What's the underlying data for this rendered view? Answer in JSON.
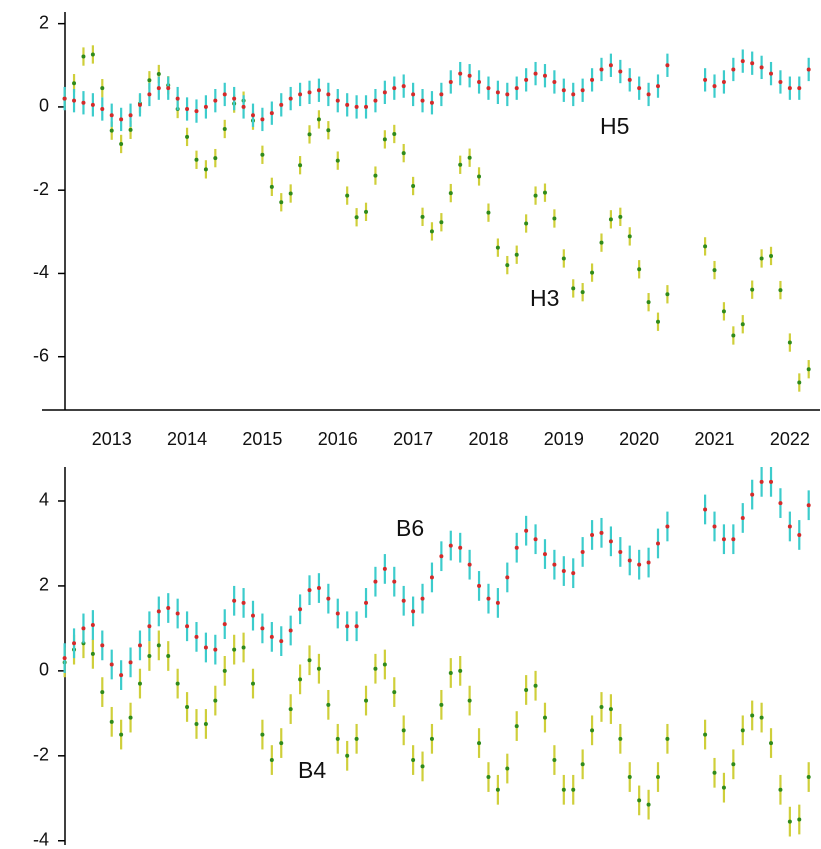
{
  "chart_data": [
    {
      "type": "errorbar",
      "x": [
        2012.375,
        2012.5,
        2012.625,
        2012.75,
        2012.875,
        2013,
        2013.125,
        2013.25,
        2013.375,
        2013.5,
        2013.625,
        2013.75,
        2013.875,
        2014,
        2014.125,
        2014.25,
        2014.375,
        2014.5,
        2014.625,
        2014.75,
        2014.875,
        2015,
        2015.125,
        2015.25,
        2015.375,
        2015.5,
        2015.625,
        2015.75,
        2015.875,
        2016,
        2016.125,
        2016.25,
        2016.375,
        2016.5,
        2016.625,
        2016.75,
        2016.875,
        2017,
        2017.125,
        2017.25,
        2017.375,
        2017.5,
        2017.625,
        2017.75,
        2017.875,
        2018,
        2018.125,
        2018.25,
        2018.375,
        2018.5,
        2018.625,
        2018.75,
        2018.875,
        2019,
        2019.125,
        2019.25,
        2019.375,
        2019.5,
        2019.625,
        2019.75,
        2019.875,
        2020,
        2020.125,
        2020.25,
        2020.375,
        2020.5,
        2020.625,
        2020.75,
        2020.875,
        2021,
        2021.125,
        2021.25,
        2021.375,
        2021.5,
        2021.625,
        2021.75,
        2021.875,
        2022,
        2022.125,
        2022.25
      ],
      "xlim": [
        2012.38,
        2022.4
      ],
      "xticks": [
        2013,
        2014,
        2015,
        2016,
        2017,
        2018,
        2019,
        2020,
        2021,
        2022
      ],
      "ylim": [
        -7.28,
        2.28
      ],
      "yticks": [
        2,
        0,
        -2,
        -4,
        -6
      ],
      "series": [
        {
          "name": "H3",
          "color": "#2f8a1c",
          "error_color": "#cfcf3a",
          "error": 0.22,
          "values": [
            0.2,
            0.57,
            1.21,
            1.26,
            0.45,
            -0.57,
            -0.89,
            -0.55,
            0.08,
            0.64,
            0.79,
            0.52,
            -0.05,
            -0.72,
            -1.27,
            -1.5,
            -1.23,
            -0.53,
            0.08,
            0.15,
            -0.33,
            -1.15,
            -1.92,
            -2.29,
            -2.08,
            -1.4,
            -0.66,
            -0.3,
            -0.56,
            -1.29,
            -2.13,
            -2.65,
            -2.52,
            -1.65,
            -0.78,
            -0.65,
            -1.11,
            -1.9,
            -2.64,
            -2.99,
            -2.77,
            -2.07,
            -1.39,
            -1.22,
            -1.67,
            -2.54,
            -3.38,
            -3.8,
            -3.55,
            -2.8,
            -2.13,
            -2.06,
            -2.68,
            -3.64,
            -4.36,
            -4.45,
            -3.98,
            -3.26,
            -2.7,
            -2.64,
            -3.11,
            -3.9,
            -4.69,
            -5.16,
            -4.5,
            null,
            null,
            null,
            -3.35,
            -3.92,
            -4.91,
            -5.49,
            -5.22,
            -4.39,
            -3.64,
            -3.58,
            -4.4,
            -5.66,
            -6.62,
            -6.3
          ]
        },
        {
          "name": "H5",
          "color": "#d42a2a",
          "error_color": "#3ccccc",
          "error": 0.28,
          "values": [
            0.2,
            0.15,
            0.1,
            0.05,
            -0.05,
            -0.2,
            -0.3,
            -0.2,
            0.05,
            0.3,
            0.45,
            0.45,
            0.2,
            -0.05,
            -0.1,
            0.0,
            0.15,
            0.3,
            0.2,
            0.0,
            -0.2,
            -0.3,
            -0.15,
            0.05,
            0.2,
            0.3,
            0.35,
            0.4,
            0.3,
            0.15,
            0.05,
            0.0,
            0.0,
            0.15,
            0.35,
            0.45,
            0.5,
            0.3,
            0.15,
            0.1,
            0.3,
            0.6,
            0.8,
            0.75,
            0.6,
            0.45,
            0.35,
            0.3,
            0.45,
            0.65,
            0.8,
            0.75,
            0.6,
            0.4,
            0.3,
            0.4,
            0.65,
            0.9,
            1.0,
            0.85,
            0.65,
            0.45,
            0.3,
            0.5,
            1.0,
            null,
            null,
            null,
            0.65,
            0.5,
            0.6,
            0.9,
            1.1,
            1.05,
            0.95,
            0.8,
            0.6,
            0.45,
            0.45,
            0.9
          ]
        }
      ]
    },
    {
      "type": "errorbar",
      "x": [
        2012.375,
        2012.5,
        2012.625,
        2012.75,
        2012.875,
        2013,
        2013.125,
        2013.25,
        2013.375,
        2013.5,
        2013.625,
        2013.75,
        2013.875,
        2014,
        2014.125,
        2014.25,
        2014.375,
        2014.5,
        2014.625,
        2014.75,
        2014.875,
        2015,
        2015.125,
        2015.25,
        2015.375,
        2015.5,
        2015.625,
        2015.75,
        2015.875,
        2016,
        2016.125,
        2016.25,
        2016.375,
        2016.5,
        2016.625,
        2016.75,
        2016.875,
        2017,
        2017.125,
        2017.25,
        2017.375,
        2017.5,
        2017.625,
        2017.75,
        2017.875,
        2018,
        2018.125,
        2018.25,
        2018.375,
        2018.5,
        2018.625,
        2018.75,
        2018.875,
        2019,
        2019.125,
        2019.25,
        2019.375,
        2019.5,
        2019.625,
        2019.75,
        2019.875,
        2020,
        2020.125,
        2020.25,
        2020.375,
        2020.5,
        2020.625,
        2020.75,
        2020.875,
        2021,
        2021.125,
        2021.25,
        2021.375,
        2021.5,
        2021.625,
        2021.75,
        2021.875,
        2022,
        2022.125,
        2022.25
      ],
      "xlim": [
        2012.38,
        2022.4
      ],
      "ylim": [
        -4.1,
        4.8
      ],
      "yticks": [
        4,
        2,
        0,
        -2,
        -4
      ],
      "series": [
        {
          "name": "B4",
          "color": "#2f8a1c",
          "error_color": "#cfcf3a",
          "error": 0.35,
          "values": [
            0.2,
            0.5,
            0.65,
            0.4,
            -0.5,
            -1.2,
            -1.5,
            -1.1,
            -0.3,
            0.35,
            0.6,
            0.35,
            -0.3,
            -0.85,
            -1.25,
            -1.25,
            -0.7,
            0.0,
            0.5,
            0.55,
            -0.3,
            -1.5,
            -2.1,
            -1.7,
            -0.9,
            -0.2,
            0.25,
            0.05,
            -0.8,
            -1.6,
            -2.0,
            -1.6,
            -0.7,
            0.05,
            0.15,
            -0.5,
            -1.4,
            -2.1,
            -2.25,
            -1.6,
            -0.8,
            -0.05,
            0.0,
            -0.7,
            -1.7,
            -2.5,
            -2.8,
            -2.3,
            -1.3,
            -0.45,
            -0.35,
            -1.1,
            -2.1,
            -2.8,
            -2.8,
            -2.2,
            -1.4,
            -0.85,
            -0.9,
            -1.6,
            -2.5,
            -3.05,
            -3.15,
            -2.5,
            -1.6,
            null,
            null,
            null,
            -1.5,
            -2.4,
            -2.75,
            -2.2,
            -1.4,
            -1.05,
            -1.1,
            -1.7,
            -2.8,
            -3.55,
            -3.5,
            -2.5
          ]
        },
        {
          "name": "B6",
          "color": "#d42a2a",
          "error_color": "#3ccccc",
          "error": 0.35,
          "values": [
            0.3,
            0.65,
            1.0,
            1.08,
            0.6,
            0.15,
            -0.1,
            0.2,
            0.6,
            1.05,
            1.4,
            1.48,
            1.35,
            1.05,
            0.8,
            0.55,
            0.5,
            1.1,
            1.65,
            1.6,
            1.3,
            1.0,
            0.8,
            0.7,
            0.95,
            1.45,
            1.9,
            1.95,
            1.7,
            1.35,
            1.05,
            1.05,
            1.6,
            2.1,
            2.4,
            2.1,
            1.65,
            1.4,
            1.7,
            2.2,
            2.7,
            2.95,
            2.9,
            2.5,
            2.0,
            1.7,
            1.6,
            2.2,
            2.9,
            3.3,
            3.1,
            2.75,
            2.5,
            2.35,
            2.3,
            2.8,
            3.2,
            3.25,
            3.05,
            2.8,
            2.6,
            2.5,
            2.55,
            3.0,
            3.4,
            null,
            null,
            null,
            3.8,
            3.4,
            3.1,
            3.1,
            3.6,
            4.15,
            4.45,
            4.45,
            3.95,
            3.4,
            3.2,
            3.9
          ]
        }
      ]
    }
  ]
}
